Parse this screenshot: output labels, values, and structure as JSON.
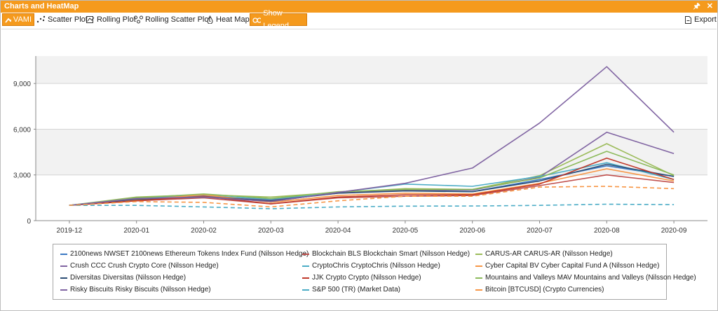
{
  "window": {
    "title": "Charts and HeatMap",
    "pin_icon": "pin-icon",
    "close_icon": "close-icon"
  },
  "toolbar": {
    "vami": "VAMI",
    "scatter": "Scatter Plot",
    "rolling": "Rolling Plot",
    "rolling_scatter": "Rolling Scatter Plot",
    "heatmap": "Heat Map",
    "legend": "Show Legend",
    "export": "Export"
  },
  "chart_data": {
    "type": "line",
    "categories": [
      "2019-12",
      "2020-01",
      "2020-02",
      "2020-03",
      "2020-04",
      "2020-05",
      "2020-06",
      "2020-07",
      "2020-08",
      "2020-09"
    ],
    "ylim": [
      0,
      10800
    ],
    "yticks": [
      0,
      3000,
      6000,
      9000
    ],
    "ytick_labels": [
      "0",
      "3,000",
      "6,000",
      "9,000"
    ],
    "series": [
      {
        "name": "2100news NWSET 2100news Ethereum Tokens Index Fund (Nilsson Hedge)",
        "color": "#3a78c2",
        "dashed": false,
        "values": [
          1000,
          1400,
          1600,
          1250,
          1850,
          2000,
          1900,
          2700,
          3600,
          2900
        ]
      },
      {
        "name": "Blockchain BLS Blockchain Smart (Nilsson Hedge)",
        "color": "#c0504d",
        "dashed": false,
        "values": [
          1000,
          1300,
          1500,
          1100,
          1500,
          1600,
          1650,
          2300,
          3000,
          2500
        ]
      },
      {
        "name": "CARUS-AR CARUS-AR (Nilsson Hedge)",
        "color": "#9bbb59",
        "dashed": false,
        "values": [
          1000,
          1550,
          1700,
          1550,
          1850,
          2100,
          2050,
          2950,
          5050,
          2950
        ]
      },
      {
        "name": "Crush CCC Crush Crypto Core (Nilsson Hedge)",
        "color": "#8064a2",
        "dashed": false,
        "values": [
          1000,
          1450,
          1650,
          1350,
          1800,
          2000,
          2000,
          2850,
          5800,
          4400
        ]
      },
      {
        "name": "CryptoChris CryptoChris (Nilsson Hedge)",
        "color": "#4bacc6",
        "dashed": false,
        "values": [
          1000,
          1500,
          1650,
          1400,
          1850,
          2400,
          2250,
          2900,
          3800,
          2700
        ]
      },
      {
        "name": "Cyber Capital BV Cyber Capital Fund A (Nilsson Hedge)",
        "color": "#f79646",
        "dashed": false,
        "values": [
          1000,
          1350,
          1700,
          1200,
          1650,
          1800,
          1750,
          2450,
          3400,
          2600
        ]
      },
      {
        "name": "Diversitas Diversitas (Nilsson Hedge)",
        "color": "#2c4d75",
        "dashed": false,
        "values": [
          1000,
          1400,
          1550,
          1300,
          1800,
          1950,
          1900,
          2600,
          3700,
          2900
        ]
      },
      {
        "name": "JJK Crypto Crypto (Nilsson Hedge)",
        "color": "#c0392b",
        "dashed": false,
        "values": [
          1000,
          1300,
          1600,
          1100,
          1550,
          1700,
          1700,
          2400,
          4100,
          2700
        ]
      },
      {
        "name": "Mountains and Valleys MAV Mountains and Valleys (Nilsson Hedge)",
        "color": "#8cba5b",
        "dashed": false,
        "values": [
          1000,
          1500,
          1750,
          1450,
          1900,
          2050,
          2050,
          2800,
          4550,
          3000
        ]
      },
      {
        "name": "Risky Biscuits Risky Biscuits (Nilsson Hedge)",
        "color": "#8064a2",
        "dashed": false,
        "values": [
          1000,
          1450,
          1550,
          1250,
          1850,
          2450,
          3450,
          6400,
          10100,
          5800
        ]
      },
      {
        "name": "S&P 500 (TR) (Market Data)",
        "color": "#4bacc6",
        "dashed": true,
        "values": [
          1000,
          1000,
          900,
          780,
          900,
          950,
          960,
          1000,
          1080,
          1050
        ]
      },
      {
        "name": "Bitcoin [BTCUSD] (Crypto Currencies)",
        "color": "#f79646",
        "dashed": true,
        "values": [
          1000,
          1250,
          1200,
          900,
          1300,
          1600,
          1600,
          2200,
          2250,
          2100
        ]
      }
    ]
  }
}
